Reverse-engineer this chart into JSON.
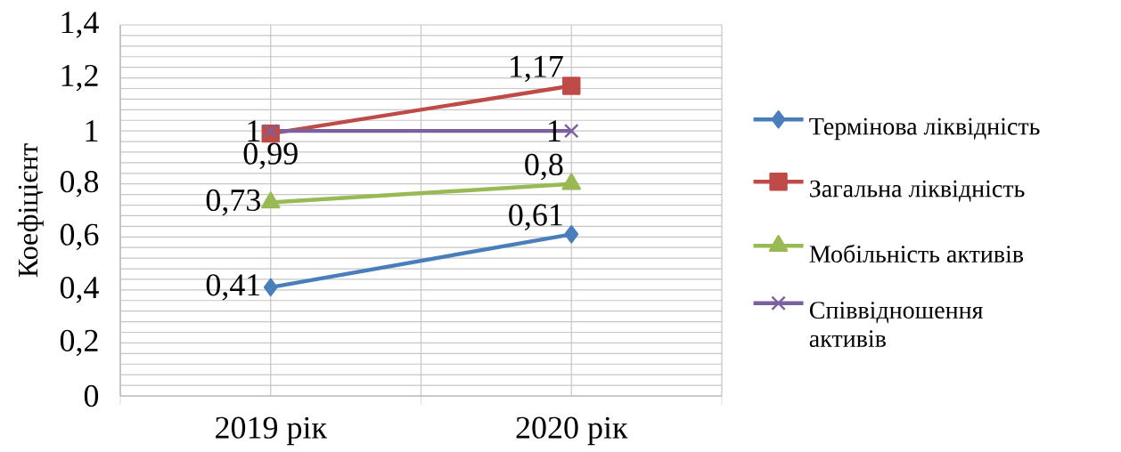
{
  "chart_data": {
    "type": "line",
    "ylabel": "Коефіцієнт",
    "categories": [
      "2019 рік",
      "2020 рік"
    ],
    "series": [
      {
        "name": "Термінова ліквідність",
        "color": "#4a7ebb",
        "marker": "diamond",
        "values": [
          0.41,
          0.61
        ],
        "value_labels": [
          "0,41",
          "0,61"
        ]
      },
      {
        "name": "Загальна ліквідність",
        "color": "#be4b48",
        "marker": "square",
        "values": [
          0.99,
          1.17
        ],
        "value_labels": [
          "0,99",
          "1,17"
        ]
      },
      {
        "name": "Мобільність активів",
        "color": "#98b954",
        "marker": "triangle",
        "values": [
          0.73,
          0.8
        ],
        "value_labels": [
          "0,73",
          "0,8"
        ]
      },
      {
        "name": "Співвідношення активів",
        "color": "#7d60a0",
        "marker": "cross",
        "values": [
          1,
          1
        ],
        "value_labels": [
          "1",
          "1"
        ]
      }
    ],
    "ylim": [
      0,
      1.4
    ],
    "yticks": [
      0,
      {
        "value": 0.2,
        "label": "0,2"
      },
      {
        "value": 0.4,
        "label": "0,4"
      },
      {
        "value": 0.6,
        "label": "0,6"
      },
      {
        "value": 0.8,
        "label": "0,8"
      },
      1,
      {
        "value": 1.2,
        "label": "1,2"
      },
      {
        "value": 1.4,
        "label": "1,4"
      }
    ],
    "grid": true,
    "legend": "right",
    "line_style": "solid"
  }
}
